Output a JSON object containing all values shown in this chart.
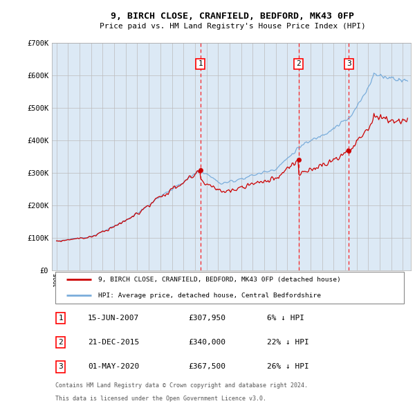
{
  "title": "9, BIRCH CLOSE, CRANFIELD, BEDFORD, MK43 0FP",
  "subtitle": "Price paid vs. HM Land Registry's House Price Index (HPI)",
  "background_color": "#dce9f5",
  "ylim": [
    0,
    700000
  ],
  "yticks": [
    0,
    100000,
    200000,
    300000,
    400000,
    500000,
    600000,
    700000
  ],
  "ytick_labels": [
    "£0",
    "£100K",
    "£200K",
    "£300K",
    "£400K",
    "£500K",
    "£600K",
    "£700K"
  ],
  "hpi_color": "#7aaddb",
  "price_color": "#cc0000",
  "purchase_years_decimal": [
    2007.46,
    2015.97,
    2020.33
  ],
  "purchase_prices": [
    307950,
    340000,
    367500
  ],
  "purchase_labels": [
    "1",
    "2",
    "3"
  ],
  "legend_line1": "9, BIRCH CLOSE, CRANFIELD, BEDFORD, MK43 0FP (detached house)",
  "legend_line2": "HPI: Average price, detached house, Central Bedfordshire",
  "footer_line1": "Contains HM Land Registry data © Crown copyright and database right 2024.",
  "footer_line2": "This data is licensed under the Open Government Licence v3.0.",
  "table_rows": [
    [
      "1",
      "15-JUN-2007",
      "£307,950",
      "6% ↓ HPI"
    ],
    [
      "2",
      "21-DEC-2015",
      "£340,000",
      "22% ↓ HPI"
    ],
    [
      "3",
      "01-MAY-2020",
      "£367,500",
      "26% ↓ HPI"
    ]
  ]
}
